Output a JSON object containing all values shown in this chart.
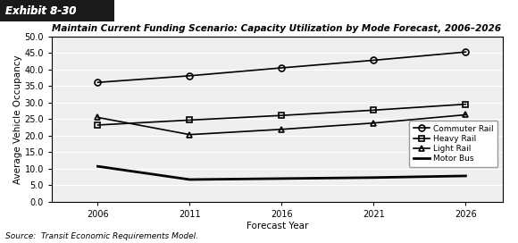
{
  "title": "Maintain Current Funding Scenario: Capacity Utilization by Mode Forecast, 2006–2026",
  "exhibit_label": "Exhibit 8-30",
  "xlabel": "Forecast Year",
  "ylabel": "Average Vehicle Occupancy",
  "source": "Source:  Transit Economic Requirements Model.",
  "years": [
    2006,
    2011,
    2016,
    2021,
    2026
  ],
  "series": {
    "Commuter Rail": {
      "values": [
        36.1,
        38.1,
        40.5,
        42.8,
        45.3
      ],
      "marker": "o",
      "linewidth": 1.2,
      "markersize": 5,
      "color": "#000000",
      "fillstyle": "none",
      "markeredgewidth": 1.2
    },
    "Heavy Rail": {
      "values": [
        23.2,
        24.7,
        26.1,
        27.7,
        29.5
      ],
      "marker": "s",
      "linewidth": 1.2,
      "markersize": 5,
      "color": "#000000",
      "fillstyle": "none",
      "markeredgewidth": 1.2
    },
    "Light Rail": {
      "values": [
        25.5,
        20.3,
        21.9,
        23.8,
        26.3
      ],
      "marker": "^",
      "linewidth": 1.2,
      "markersize": 5,
      "color": "#000000",
      "fillstyle": "none",
      "markeredgewidth": 1.2
    },
    "Motor Bus": {
      "values": [
        10.7,
        6.7,
        7.0,
        7.3,
        7.8
      ],
      "marker": "None",
      "linewidth": 2.0,
      "markersize": 0,
      "color": "#000000",
      "fillstyle": "full",
      "markeredgewidth": 1.2
    }
  },
  "ylim": [
    0.0,
    50.0
  ],
  "yticks": [
    0.0,
    5.0,
    10.0,
    15.0,
    20.0,
    25.0,
    30.0,
    35.0,
    40.0,
    45.0,
    50.0
  ],
  "xticks": [
    2006,
    2011,
    2016,
    2021,
    2026
  ],
  "background_color": "#ffffff",
  "plot_bg_color": "#efefef",
  "exhibit_bg_color": "#1a1a1a",
  "exhibit_text_color": "#ffffff",
  "grid_color": "#ffffff",
  "border_color": "#000000",
  "tick_fontsize": 7,
  "label_fontsize": 7.5,
  "title_fontsize": 7.5,
  "legend_fontsize": 6.5,
  "source_fontsize": 6.5
}
